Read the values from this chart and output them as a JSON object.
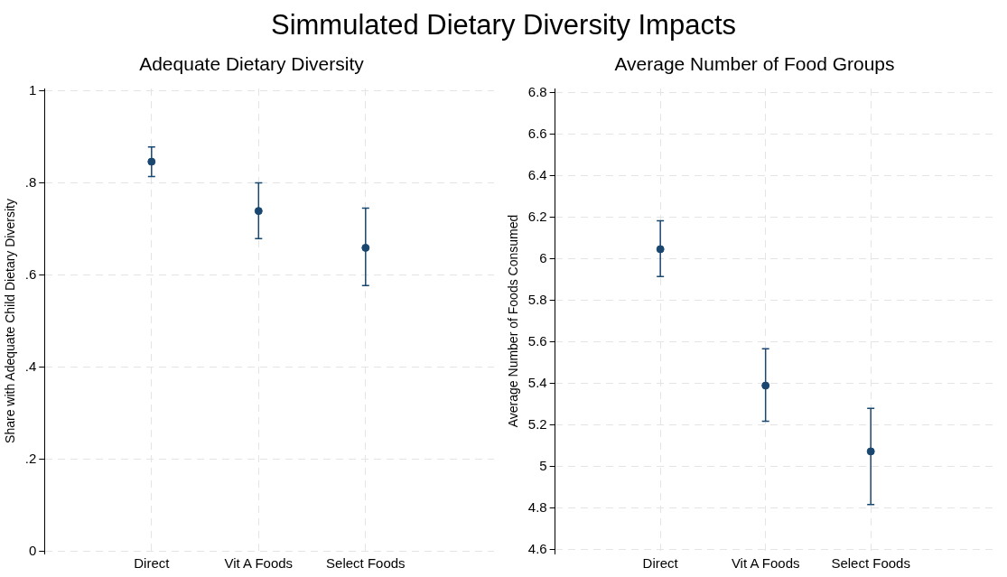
{
  "chart_data": [
    {
      "type": "scatter",
      "title": "Adequate Dietary Diversity",
      "annotations": [
        "Simmulated Dietary Diversity Impacts"
      ],
      "ylabel": "Share with Adequate Child Dietary Diversity",
      "categories": [
        "Direct",
        "Vit A Foods",
        "Select Foods"
      ],
      "series": [
        {
          "color": "#1a476f",
          "values": [
            0.846,
            0.739,
            0.659
          ],
          "errors": [
            [
              0.814,
              0.878
            ],
            [
              0.679,
              0.8
            ],
            [
              0.577,
              0.745
            ]
          ]
        }
      ],
      "ylim": [
        -0.005,
        1.005
      ],
      "yticks": [
        0,
        {
          "value": 0.2,
          "label": ".2"
        },
        {
          "value": 0.4,
          "label": ".4"
        },
        {
          "value": 0.6,
          "label": ".6"
        },
        {
          "value": 0.8,
          "label": ".8"
        },
        1
      ],
      "grid": true,
      "marker": "circle",
      "legend": false
    },
    {
      "type": "scatter",
      "title": "Average Number of Food Groups",
      "ylabel": "Average Number of Foods Consumed",
      "categories": [
        "Direct",
        "Vit A Foods",
        "Select Foods"
      ],
      "series": [
        {
          "color": "#1a476f",
          "values": [
            6.046,
            5.389,
            5.072
          ],
          "errors": [
            [
              5.914,
              6.183
            ],
            [
              5.217,
              5.566
            ],
            [
              4.816,
              5.279
            ]
          ]
        }
      ],
      "ylim": [
        4.58,
        6.82
      ],
      "yticks": [
        4.6,
        4.8,
        5,
        5.2,
        5.4,
        5.6,
        5.8,
        6,
        6.2,
        6.4,
        6.6,
        6.8
      ],
      "grid": true,
      "marker": "circle",
      "legend": false
    }
  ]
}
